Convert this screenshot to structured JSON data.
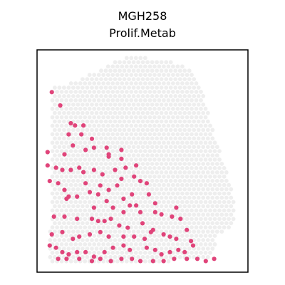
{
  "chart_data": {
    "type": "scatter",
    "title": "MGH258",
    "subtitle": "Prolif.Metab",
    "xlabel": "",
    "ylabel": "",
    "axes_ticks": false,
    "grid": false,
    "colors": {
      "background_spots": "#eeeeee",
      "highlight_spots": "#e0447a",
      "frame": "#000000"
    },
    "xlim": [
      0,
      100
    ],
    "ylim": [
      0,
      100
    ],
    "series": [
      {
        "role": "tissue-spots",
        "outline": [
          [
            7,
            83
          ],
          [
            20,
            86
          ],
          [
            27,
            90
          ],
          [
            35,
            94
          ],
          [
            43,
            97
          ],
          [
            58,
            96
          ],
          [
            70,
            93
          ],
          [
            77,
            86
          ],
          [
            80,
            75
          ],
          [
            84,
            62
          ],
          [
            90,
            45
          ],
          [
            94,
            30
          ],
          [
            93,
            20
          ],
          [
            86,
            17
          ],
          [
            82,
            5
          ],
          [
            65,
            5
          ],
          [
            40,
            4
          ],
          [
            6,
            4
          ]
        ]
      },
      {
        "role": "highlighted-spots",
        "points": [
          [
            7,
            81
          ],
          [
            11,
            75
          ],
          [
            16,
            67
          ],
          [
            18,
            66
          ],
          [
            22,
            66
          ],
          [
            15,
            62
          ],
          [
            21,
            62
          ],
          [
            17,
            57
          ],
          [
            26,
            60
          ],
          [
            23,
            55
          ],
          [
            27,
            56
          ],
          [
            33,
            56
          ],
          [
            34,
            53
          ],
          [
            40,
            55
          ],
          [
            40,
            51
          ],
          [
            5,
            54
          ],
          [
            13,
            53
          ],
          [
            34,
            52
          ],
          [
            5,
            48
          ],
          [
            9,
            47
          ],
          [
            12,
            46
          ],
          [
            16,
            46
          ],
          [
            20,
            47
          ],
          [
            22,
            45
          ],
          [
            27,
            46
          ],
          [
            31,
            44
          ],
          [
            37,
            46
          ],
          [
            42,
            47
          ],
          [
            47,
            48
          ],
          [
            40,
            42
          ],
          [
            46,
            43
          ],
          [
            38,
            39
          ],
          [
            49,
            41
          ],
          [
            52,
            40
          ],
          [
            6,
            41
          ],
          [
            10,
            40
          ],
          [
            13,
            37
          ],
          [
            15,
            34
          ],
          [
            19,
            34
          ],
          [
            23,
            40
          ],
          [
            25,
            36
          ],
          [
            29,
            35
          ],
          [
            30,
            39
          ],
          [
            34,
            37
          ],
          [
            41,
            33
          ],
          [
            45,
            35
          ],
          [
            53,
            35
          ],
          [
            56,
            31
          ],
          [
            47,
            30
          ],
          [
            14,
            33
          ],
          [
            27,
            29
          ],
          [
            33,
            32
          ],
          [
            36,
            29
          ],
          [
            41,
            27
          ],
          [
            44,
            30
          ],
          [
            49,
            27
          ],
          [
            56,
            27
          ],
          [
            59,
            26
          ],
          [
            64,
            25
          ],
          [
            66,
            29
          ],
          [
            68,
            24
          ],
          [
            8,
            25
          ],
          [
            13,
            25
          ],
          [
            19,
            24
          ],
          [
            26,
            24
          ],
          [
            29,
            23
          ],
          [
            32,
            23
          ],
          [
            35,
            24
          ],
          [
            39,
            21
          ],
          [
            43,
            20
          ],
          [
            50,
            22
          ],
          [
            55,
            19
          ],
          [
            7,
            17
          ],
          [
            12,
            18
          ],
          [
            17,
            15
          ],
          [
            20,
            16
          ],
          [
            25,
            17
          ],
          [
            30,
            18
          ],
          [
            34,
            16
          ],
          [
            41,
            16
          ],
          [
            46,
            16
          ],
          [
            51,
            15
          ],
          [
            54,
            18
          ],
          [
            60,
            17
          ],
          [
            63,
            16
          ],
          [
            66,
            15
          ],
          [
            71,
            19
          ],
          [
            73,
            14
          ],
          [
            6,
            12
          ],
          [
            9,
            11
          ],
          [
            12,
            9
          ],
          [
            15,
            8
          ],
          [
            19,
            9
          ],
          [
            23,
            9
          ],
          [
            27,
            7
          ],
          [
            32,
            9
          ],
          [
            36,
            11
          ],
          [
            41,
            12
          ],
          [
            44,
            10
          ],
          [
            52,
            11
          ],
          [
            56,
            10
          ],
          [
            59,
            8
          ],
          [
            63,
            9
          ],
          [
            67,
            10
          ],
          [
            70,
            9
          ],
          [
            74,
            12
          ],
          [
            71,
            6
          ],
          [
            65,
            6
          ],
          [
            60,
            5
          ],
          [
            55,
            5
          ],
          [
            49,
            5
          ],
          [
            45,
            6
          ],
          [
            40,
            6
          ],
          [
            35,
            5
          ],
          [
            30,
            6
          ],
          [
            26,
            5
          ],
          [
            20,
            6
          ],
          [
            14,
            6
          ],
          [
            10,
            6
          ],
          [
            76,
            6
          ],
          [
            80,
            5
          ],
          [
            84,
            6
          ]
        ]
      }
    ]
  }
}
